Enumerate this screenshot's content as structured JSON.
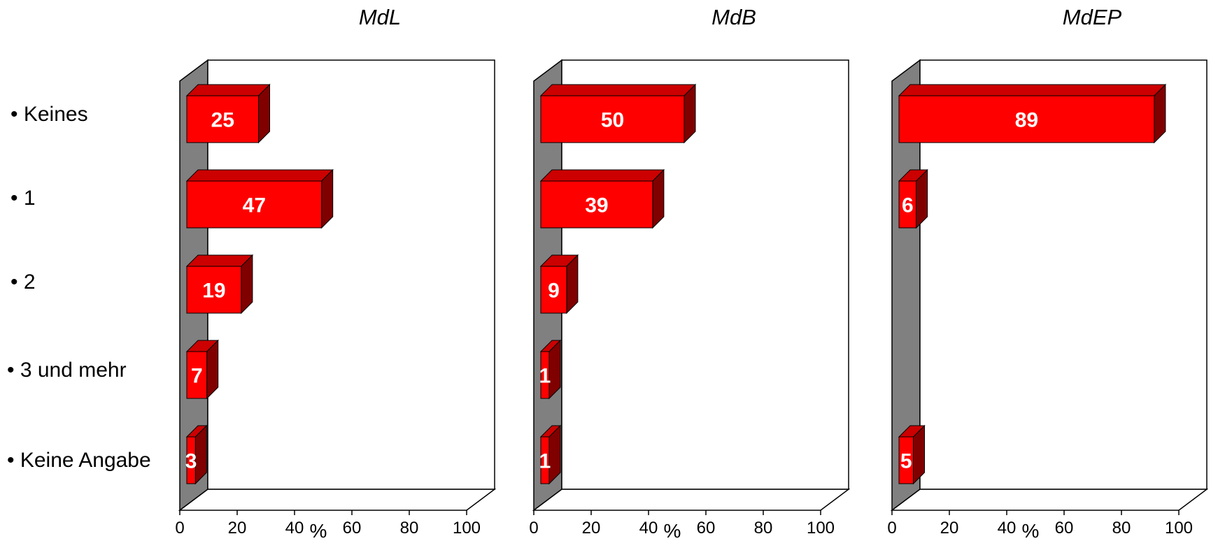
{
  "chart_data": {
    "type": "bar",
    "orientation": "horizontal",
    "three_d": true,
    "categories": [
      "• Keines",
      "• 1",
      "• 2",
      "• 3 und mehr",
      "• Keine Angabe"
    ],
    "unit_label": "%",
    "xlim": [
      0,
      100
    ],
    "xticks": [
      "0",
      "20",
      "40",
      "60",
      "80",
      "100"
    ],
    "bar_color": "#ff0000",
    "wall_color": "#808080",
    "label_color": "#ffffff",
    "panels": [
      {
        "title": "MdL",
        "values": [
          25,
          47,
          19,
          7,
          3
        ],
        "labels": [
          "25",
          "47",
          "19",
          "7",
          "3"
        ]
      },
      {
        "title": "MdB",
        "values": [
          50,
          39,
          9,
          1,
          1
        ],
        "labels": [
          "50",
          "39",
          "9",
          "1",
          "1"
        ]
      },
      {
        "title": "MdEP",
        "values": [
          89,
          6,
          null,
          null,
          5
        ],
        "labels": [
          "89",
          "6",
          "",
          "",
          "5"
        ]
      }
    ]
  }
}
